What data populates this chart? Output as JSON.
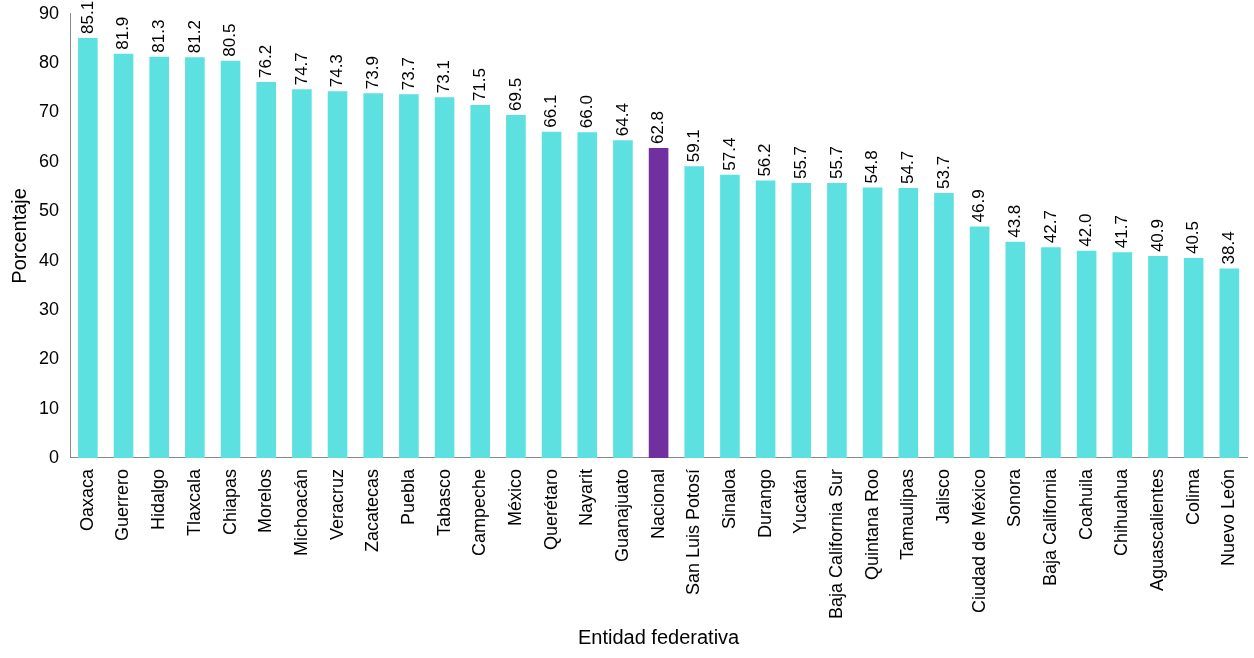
{
  "chart_data": {
    "type": "bar",
    "xlabel": "Entidad federativa",
    "ylabel": "Porcentaje",
    "categories": [
      "Oaxaca",
      "Guerrero",
      "Hidalgo",
      "Tlaxcala",
      "Chiapas",
      "Morelos",
      "Michoacán",
      "Veracruz",
      "Zacatecas",
      "Puebla",
      "Tabasco",
      "Campeche",
      "México",
      "Querétaro",
      "Nayarit",
      "Guanajuato",
      "Nacional",
      "San Luis Potosí",
      "Sinaloa",
      "Durango",
      "Yucatán",
      "Baja California Sur",
      "Quintana Roo",
      "Tamaulipas",
      "Jalisco",
      "Ciudad de México",
      "Sonora",
      "Baja California",
      "Coahuila",
      "Chihuahua",
      "Aguascalientes",
      "Colima",
      "Nuevo León"
    ],
    "values": [
      85.1,
      81.9,
      81.3,
      81.2,
      80.5,
      76.2,
      74.7,
      74.3,
      73.9,
      73.7,
      73.1,
      71.5,
      69.5,
      66.1,
      66.0,
      64.4,
      62.8,
      59.1,
      57.4,
      56.2,
      55.7,
      55.7,
      54.8,
      54.7,
      53.7,
      46.9,
      43.8,
      42.7,
      42.0,
      41.7,
      40.9,
      40.5,
      38.4
    ],
    "value_labels": [
      "85.1",
      "81.9",
      "81.3",
      "81.2",
      "80.5",
      "76.2",
      "74.7",
      "74.3",
      "73.9",
      "73.7",
      "73.1",
      "71.5",
      "69.5",
      "66.1",
      "66.0",
      "64.4",
      "62.8",
      "59.1",
      "57.4",
      "56.2",
      "55.7",
      "55.7",
      "54.8",
      "54.7",
      "53.7",
      "46.9",
      "43.8",
      "42.7",
      "42.0",
      "41.7",
      "40.9",
      "40.5",
      "38.4"
    ],
    "colors": [
      "#5ce1e0",
      "#5ce1e0",
      "#5ce1e0",
      "#5ce1e0",
      "#5ce1e0",
      "#5ce1e0",
      "#5ce1e0",
      "#5ce1e0",
      "#5ce1e0",
      "#5ce1e0",
      "#5ce1e0",
      "#5ce1e0",
      "#5ce1e0",
      "#5ce1e0",
      "#5ce1e0",
      "#5ce1e0",
      "#7030a0",
      "#5ce1e0",
      "#5ce1e0",
      "#5ce1e0",
      "#5ce1e0",
      "#5ce1e0",
      "#5ce1e0",
      "#5ce1e0",
      "#5ce1e0",
      "#5ce1e0",
      "#5ce1e0",
      "#5ce1e0",
      "#5ce1e0",
      "#5ce1e0",
      "#5ce1e0",
      "#5ce1e0",
      "#5ce1e0"
    ],
    "ylim": [
      0,
      90
    ],
    "yticks": [
      0,
      10,
      20,
      30,
      40,
      50,
      60,
      70,
      80,
      90
    ],
    "grid": false,
    "legend": false
  }
}
